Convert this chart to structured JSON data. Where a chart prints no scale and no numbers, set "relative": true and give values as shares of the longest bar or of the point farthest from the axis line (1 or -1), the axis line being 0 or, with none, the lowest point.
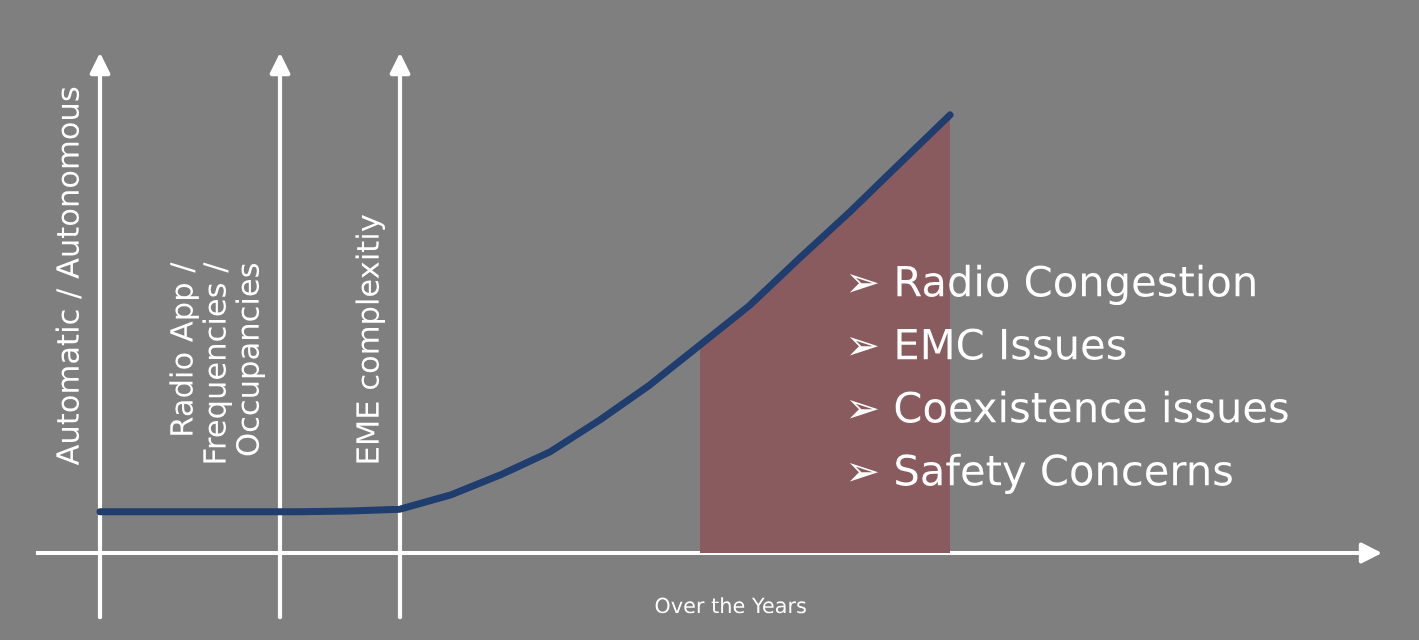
{
  "chart_data": {
    "type": "line",
    "relative": true,
    "categories": [
      null,
      null,
      null,
      null,
      null,
      null,
      null,
      null,
      null,
      null,
      null,
      null,
      null,
      null,
      null,
      null,
      null,
      null
    ],
    "xlabel": "Over the Years",
    "series": [
      {
        "type": "area",
        "color": "#8a5b5e",
        "values": [
          null,
          null,
          null,
          null,
          null,
          null,
          null,
          null,
          null,
          null,
          null,
          null,
          0.475,
          0.566,
          0.674,
          0.779,
          0.89,
          1
        ]
      },
      {
        "type": "line",
        "color": "#1f3d6e",
        "values": [
          0.094,
          0.094,
          0.094,
          0.094,
          0.094,
          0.096,
          0.1,
          0.132,
          0.178,
          0.231,
          0.304,
          0.384,
          0.475,
          0.566,
          0.674,
          0.779,
          0.89,
          1
        ]
      }
    ],
    "annotations": [
      "Automatic / Autonomous",
      "Radio App /\nFrequencies /\nOccupancies",
      "EME complexitiy",
      "➢ Radio Congestion",
      "➢ EMC Issues",
      "➢ Coexistence issues",
      "➢ Safety Concerns"
    ]
  }
}
